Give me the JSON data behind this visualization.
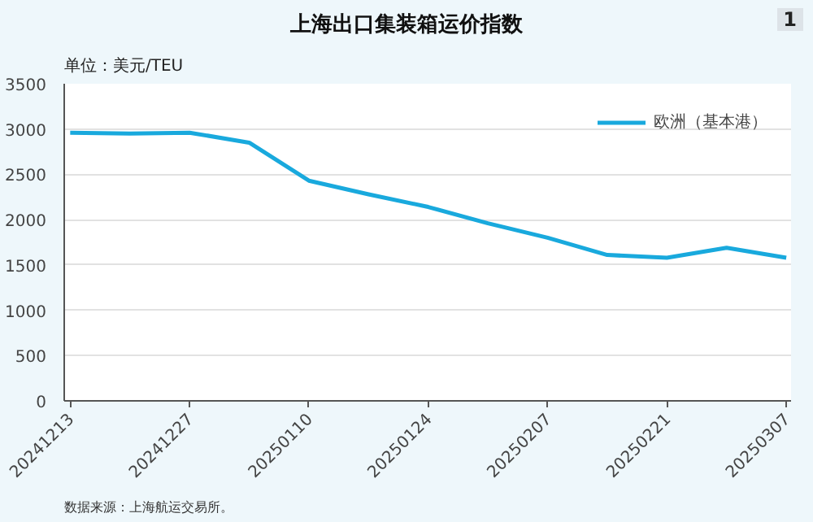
{
  "chart_data": {
    "type": "line",
    "title": "上海出口集装箱运价指数",
    "ylabel": "单位：美元/TEU",
    "categories": [
      "20241213",
      null,
      "20241227",
      null,
      "20250110",
      null,
      "20250124",
      null,
      "20250207",
      null,
      "20250221",
      null,
      "20250307"
    ],
    "series": [
      {
        "name": "欧洲（基本港）",
        "color": "#19a9dd",
        "values": [
          2960,
          2950,
          2960,
          2850,
          2430,
          2280,
          2140,
          1960,
          1800,
          1610,
          1580,
          1690,
          1580
        ]
      }
    ],
    "ylim": [
      0,
      3500
    ],
    "yticks": [
      0,
      500,
      1000,
      1500,
      2000,
      2500,
      3000,
      3500
    ],
    "grid": "y",
    "legend": "top right",
    "marker": "none",
    "line_style": "solid",
    "annotations": [
      "1",
      "数据来源：上海航运交易所。"
    ]
  }
}
